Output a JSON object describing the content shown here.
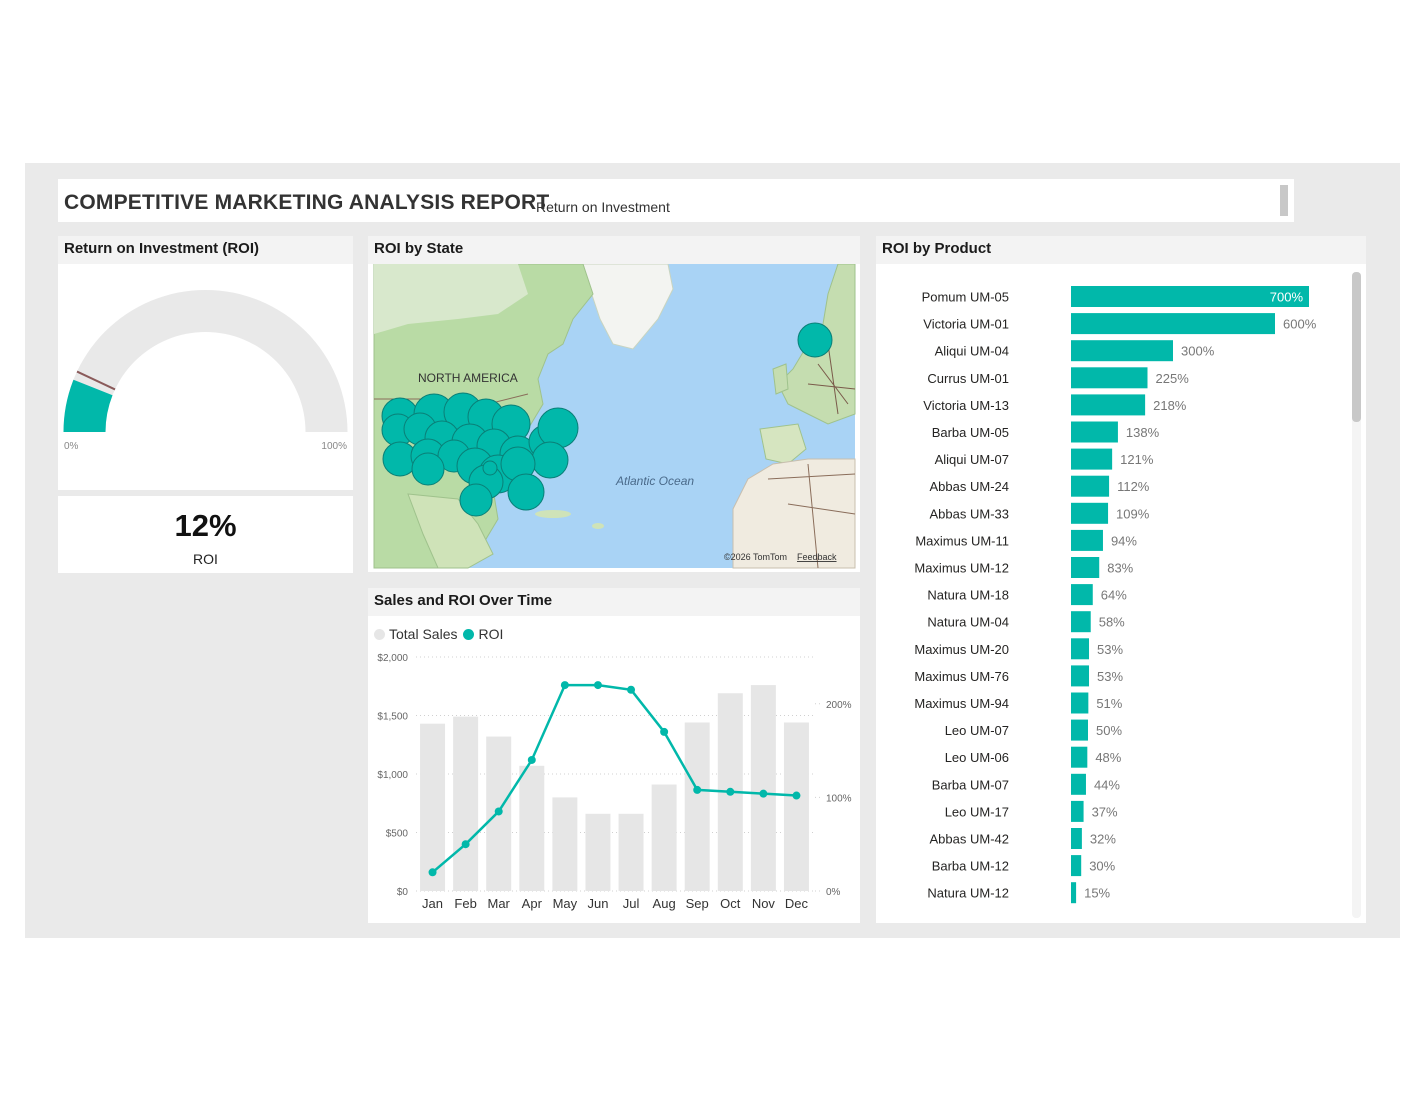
{
  "report": {
    "title": "COMPETITIVE MARKETING ANALYSIS REPORT",
    "subtitle": "Return on Investment"
  },
  "colors": {
    "accent": "#01b8aa",
    "bar_grey": "#e6e6e6",
    "panel_bg": "#ffffff",
    "canvas_bg": "#eaeaea"
  },
  "gauge": {
    "title": "Return on Investment (ROI)",
    "value_fraction": 0.12,
    "target_fraction": 0.14,
    "min_label": "0%",
    "max_label": "100%"
  },
  "card": {
    "value": "12%",
    "label": "ROI"
  },
  "map": {
    "title": "ROI by State",
    "label_continent": "NORTH AMERICA",
    "label_ocean": "Atlantic Ocean",
    "attribution": "©2026 TomTom",
    "feedback": "Feedback"
  },
  "combo": {
    "title": "Sales and ROI Over Time",
    "legend": [
      {
        "name": "Total Sales",
        "color": "#e6e6e6"
      },
      {
        "name": "ROI",
        "color": "#01b8aa"
      }
    ]
  },
  "product": {
    "title": "ROI by Product"
  },
  "chart_data": [
    {
      "type": "bar",
      "title": "Sales and ROI Over Time",
      "categories": [
        "Jan",
        "Feb",
        "Mar",
        "Apr",
        "May",
        "Jun",
        "Jul",
        "Aug",
        "Sep",
        "Oct",
        "Nov",
        "Dec"
      ],
      "series": [
        {
          "name": "Total Sales",
          "kind": "bar",
          "axis": "left",
          "values": [
            1430,
            1490,
            1320,
            1070,
            800,
            660,
            660,
            910,
            1440,
            1690,
            1760,
            1440
          ]
        },
        {
          "name": "ROI",
          "kind": "line",
          "axis": "right",
          "values": [
            20,
            50,
            85,
            140,
            220,
            220,
            215,
            170,
            108,
            106,
            104,
            102
          ]
        }
      ],
      "y_left": {
        "ticks": [
          "$0",
          "$500",
          "$1,000",
          "$1,500",
          "$2,000"
        ],
        "range": [
          0,
          2000
        ]
      },
      "y_right": {
        "ticks": [
          "0%",
          "100%",
          "200%"
        ],
        "range": [
          0,
          250
        ]
      },
      "grid": true
    },
    {
      "type": "bar",
      "orientation": "horizontal",
      "title": "ROI by Product",
      "categories": [
        "Pomum UM-05",
        "Victoria UM-01",
        "Aliqui UM-04",
        "Currus UM-01",
        "Victoria UM-13",
        "Barba UM-05",
        "Aliqui UM-07",
        "Abbas UM-24",
        "Abbas UM-33",
        "Maximus UM-11",
        "Maximus UM-12",
        "Natura UM-18",
        "Natura UM-04",
        "Maximus UM-20",
        "Maximus UM-76",
        "Maximus UM-94",
        "Leo UM-07",
        "Leo UM-06",
        "Barba UM-07",
        "Leo UM-17",
        "Abbas UM-42",
        "Barba UM-12",
        "Natura UM-12"
      ],
      "values": [
        700,
        600,
        300,
        225,
        218,
        138,
        121,
        112,
        109,
        94,
        83,
        64,
        58,
        53,
        53,
        51,
        50,
        48,
        44,
        37,
        32,
        30,
        15
      ],
      "labels": [
        "700%",
        "600%",
        "300%",
        "225%",
        "218%",
        "138%",
        "121%",
        "112%",
        "109%",
        "94%",
        "83%",
        "64%",
        "58%",
        "53%",
        "53%",
        "51%",
        "50%",
        "48%",
        "44%",
        "37%",
        "32%",
        "30%",
        "15%"
      ],
      "xlim": [
        0,
        700
      ]
    }
  ]
}
